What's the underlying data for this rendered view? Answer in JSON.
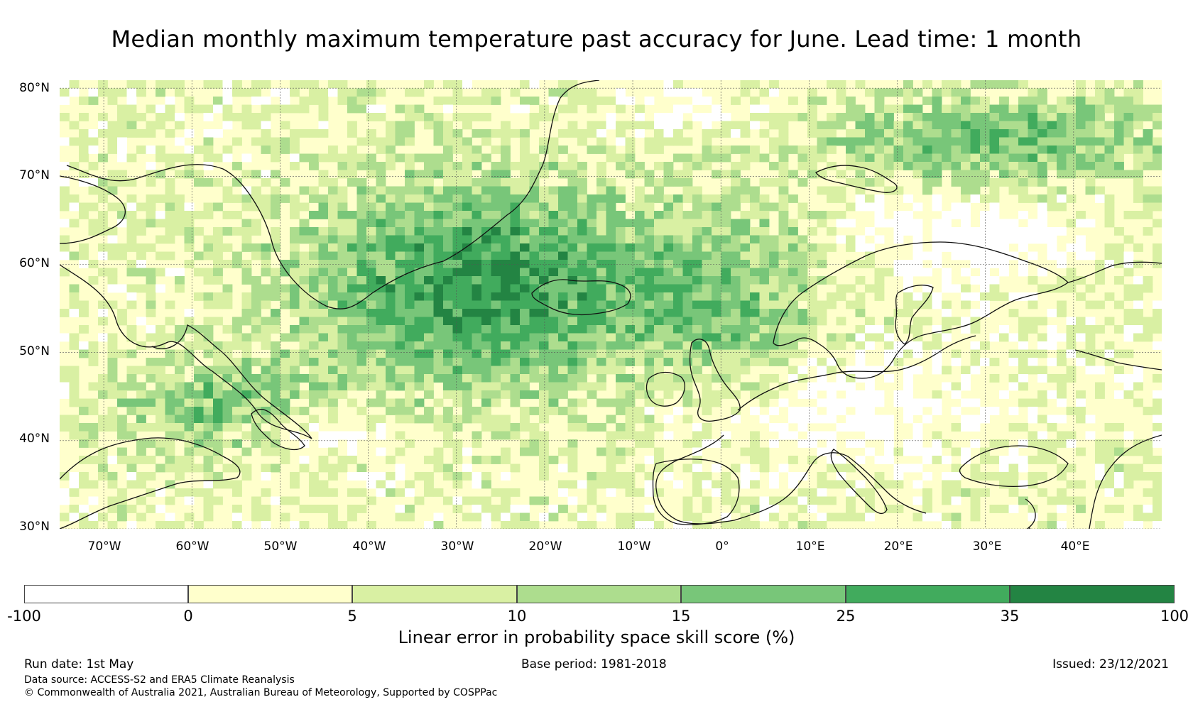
{
  "title": "Median monthly maximum temperature past accuracy for June. Lead time: 1 month",
  "map": {
    "lat_labels": [
      "80°N",
      "70°N",
      "60°N",
      "50°N",
      "40°N",
      "30°N"
    ],
    "lon_labels": [
      "70°W",
      "60°W",
      "50°W",
      "40°W",
      "30°W",
      "20°W",
      "10°W",
      "0°",
      "10°E",
      "20°E",
      "30°E",
      "40°E"
    ],
    "lon_range": [
      -75,
      50
    ],
    "lat_range": [
      30,
      80.9
    ]
  },
  "colorbar": {
    "label": "Linear error in probability space skill score (%)",
    "ticks": [
      "-100",
      "0",
      "5",
      "10",
      "15",
      "25",
      "35",
      "100"
    ],
    "colors": [
      "#ffffff",
      "#ffffcc",
      "#d9f0a3",
      "#addd8e",
      "#78c679",
      "#41ab5d",
      "#238443"
    ]
  },
  "footer": {
    "run_date": "Run date: 1st May",
    "base_period": "Base period: 1981-2018",
    "issued": "Issued: 23/12/2021",
    "data_source": "Data source: ACCESS-S2 and ERA5 Climate Reanalysis",
    "copyright": "© Commonwealth of Australia 2021, Australian Bureau of Meteorology, Supported by COSPPac"
  }
}
